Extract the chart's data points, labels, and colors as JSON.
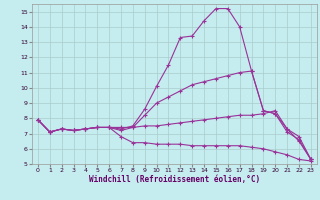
{
  "xlabel": "Windchill (Refroidissement éolien,°C)",
  "xlim": [
    -0.5,
    23.5
  ],
  "ylim": [
    5,
    15.5
  ],
  "xticks": [
    0,
    1,
    2,
    3,
    4,
    5,
    6,
    7,
    8,
    9,
    10,
    11,
    12,
    13,
    14,
    15,
    16,
    17,
    18,
    19,
    20,
    21,
    22,
    23
  ],
  "yticks": [
    5,
    6,
    7,
    8,
    9,
    10,
    11,
    12,
    13,
    14,
    15
  ],
  "bg_color": "#c5ecee",
  "line_color": "#993399",
  "grid_color": "#aacccc",
  "line1_y": [
    7.9,
    7.1,
    7.3,
    7.2,
    7.3,
    7.4,
    7.4,
    7.3,
    7.5,
    8.6,
    10.1,
    11.5,
    13.3,
    13.4,
    14.4,
    15.2,
    15.2,
    14.0,
    11.1,
    8.5,
    8.3,
    7.3,
    6.5,
    5.3
  ],
  "line2_y": [
    7.9,
    7.1,
    7.3,
    7.2,
    7.3,
    7.4,
    7.4,
    7.2,
    7.4,
    8.2,
    9.0,
    9.4,
    9.8,
    10.2,
    10.4,
    10.6,
    10.8,
    11.0,
    11.1,
    8.5,
    8.3,
    7.1,
    6.6,
    5.3
  ],
  "line3_y": [
    7.9,
    7.1,
    7.3,
    7.2,
    7.3,
    7.4,
    7.4,
    7.4,
    7.4,
    7.5,
    7.5,
    7.6,
    7.7,
    7.8,
    7.9,
    8.0,
    8.1,
    8.2,
    8.2,
    8.3,
    8.5,
    7.3,
    6.8,
    5.3
  ],
  "line4_y": [
    7.9,
    7.1,
    7.3,
    7.2,
    7.3,
    7.4,
    7.4,
    6.8,
    6.4,
    6.4,
    6.3,
    6.3,
    6.3,
    6.2,
    6.2,
    6.2,
    6.2,
    6.2,
    6.1,
    6.0,
    5.8,
    5.6,
    5.3,
    5.2
  ]
}
